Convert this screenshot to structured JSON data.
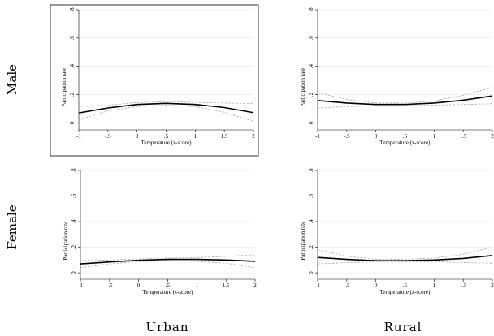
{
  "row_labels": [
    "Male",
    "Female"
  ],
  "col_labels": [
    "Urban",
    "Rural"
  ],
  "chart_data": [
    {
      "type": "line",
      "row": "Male",
      "col": "Urban",
      "xlabel": "Temperature (z-score)",
      "ylabel": "Participation rate",
      "xlim": [
        -1,
        2
      ],
      "ylim": [
        -0.05,
        0.8
      ],
      "xticks": [
        "-1",
        "-.5",
        "0",
        ".5",
        "1",
        "1.5",
        "2"
      ],
      "yticks": [
        "0",
        ".2",
        ".4",
        ".6",
        ".8"
      ],
      "grid": true,
      "framed": true,
      "series": [
        {
          "role": "estimate",
          "x": [
            -1,
            -0.5,
            0,
            0.5,
            1,
            1.5,
            2
          ],
          "y": [
            0.07,
            0.105,
            0.13,
            0.138,
            0.13,
            0.108,
            0.072
          ]
        },
        {
          "role": "ci-upper",
          "x": [
            -1,
            -0.5,
            0,
            0.5,
            1,
            1.5,
            2
          ],
          "y": [
            0.115,
            0.125,
            0.143,
            0.15,
            0.145,
            0.14,
            0.135
          ]
        },
        {
          "role": "ci-lower",
          "x": [
            -1,
            -0.5,
            0,
            0.5,
            1,
            1.5,
            2
          ],
          "y": [
            0.02,
            0.085,
            0.115,
            0.124,
            0.115,
            0.075,
            0.01
          ]
        }
      ]
    },
    {
      "type": "line",
      "row": "Male",
      "col": "Rural",
      "xlabel": "Temperature (z-score)",
      "ylabel": "Participation rate",
      "xlim": [
        -1,
        2
      ],
      "ylim": [
        -0.05,
        0.8
      ],
      "xticks": [
        "-1",
        "-.5",
        "0",
        ".5",
        "1",
        "1.5",
        "2"
      ],
      "yticks": [
        "0",
        ".2",
        ".4",
        ".6",
        ".8"
      ],
      "grid": true,
      "framed": false,
      "series": [
        {
          "role": "estimate",
          "x": [
            -1,
            -0.5,
            0,
            0.5,
            1,
            1.5,
            2
          ],
          "y": [
            0.158,
            0.14,
            0.13,
            0.13,
            0.14,
            0.16,
            0.19
          ]
        },
        {
          "role": "ci-upper",
          "x": [
            -1,
            -0.5,
            0,
            0.5,
            1,
            1.5,
            2
          ],
          "y": [
            0.215,
            0.165,
            0.14,
            0.14,
            0.155,
            0.195,
            0.25
          ]
        },
        {
          "role": "ci-lower",
          "x": [
            -1,
            -0.5,
            0,
            0.5,
            1,
            1.5,
            2
          ],
          "y": [
            0.105,
            0.115,
            0.12,
            0.12,
            0.125,
            0.13,
            0.135
          ]
        }
      ]
    },
    {
      "type": "line",
      "row": "Female",
      "col": "Urban",
      "xlabel": "Temperature (z-score)",
      "ylabel": "Participation rate",
      "xlim": [
        -1,
        2
      ],
      "ylim": [
        -0.05,
        0.8
      ],
      "xticks": [
        "-1",
        "-.5",
        "0",
        ".5",
        "1",
        "1.5",
        "2"
      ],
      "yticks": [
        "0",
        ".2",
        ".4",
        ".6",
        ".8"
      ],
      "grid": true,
      "framed": false,
      "series": [
        {
          "role": "estimate",
          "x": [
            -1,
            -0.5,
            0,
            0.5,
            1,
            1.5,
            2
          ],
          "y": [
            0.07,
            0.085,
            0.098,
            0.105,
            0.105,
            0.1,
            0.09
          ]
        },
        {
          "role": "ci-upper",
          "x": [
            -1,
            -0.5,
            0,
            0.5,
            1,
            1.5,
            2
          ],
          "y": [
            0.095,
            0.1,
            0.108,
            0.115,
            0.12,
            0.128,
            0.14
          ]
        },
        {
          "role": "ci-lower",
          "x": [
            -1,
            -0.5,
            0,
            0.5,
            1,
            1.5,
            2
          ],
          "y": [
            0.04,
            0.07,
            0.088,
            0.095,
            0.09,
            0.075,
            0.04
          ]
        }
      ]
    },
    {
      "type": "line",
      "row": "Female",
      "col": "Rural",
      "xlabel": "Temperature (z-score)",
      "ylabel": "Participation rate",
      "xlim": [
        -1,
        2
      ],
      "ylim": [
        -0.05,
        0.8
      ],
      "xticks": [
        "-1",
        "-.5",
        "0",
        ".5",
        "1",
        "1.5",
        "2"
      ],
      "yticks": [
        "0",
        ".2",
        ".4",
        ".6",
        ".8"
      ],
      "grid": true,
      "framed": false,
      "series": [
        {
          "role": "estimate",
          "x": [
            -1,
            -0.5,
            0,
            0.5,
            1,
            1.5,
            2
          ],
          "y": [
            0.12,
            0.105,
            0.095,
            0.095,
            0.1,
            0.112,
            0.135
          ]
        },
        {
          "role": "ci-upper",
          "x": [
            -1,
            -0.5,
            0,
            0.5,
            1,
            1.5,
            2
          ],
          "y": [
            0.18,
            0.13,
            0.105,
            0.105,
            0.115,
            0.145,
            0.2
          ]
        },
        {
          "role": "ci-lower",
          "x": [
            -1,
            -0.5,
            0,
            0.5,
            1,
            1.5,
            2
          ],
          "y": [
            0.07,
            0.08,
            0.085,
            0.085,
            0.088,
            0.08,
            0.075
          ]
        }
      ]
    }
  ]
}
